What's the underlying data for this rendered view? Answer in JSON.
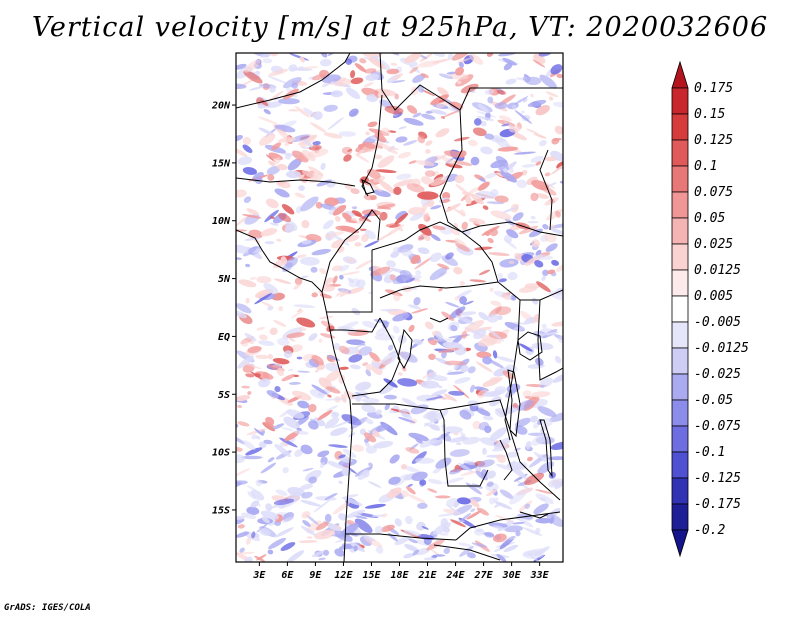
{
  "title": "Vertical velocity [m/s] at 925hPa, VT: 2020032606",
  "credit": "GrADS: IGES/COLA",
  "axes": {
    "lat_ticks": [
      "20N",
      "15N",
      "10N",
      "5N",
      "EQ",
      "5S",
      "10S",
      "15S"
    ],
    "lat_values": [
      20,
      15,
      10,
      5,
      0,
      -5,
      -10,
      -15
    ],
    "lon_ticks": [
      "3E",
      "6E",
      "9E",
      "12E",
      "15E",
      "18E",
      "21E",
      "24E",
      "27E",
      "30E",
      "33E"
    ],
    "lon_values": [
      3,
      6,
      9,
      12,
      15,
      18,
      21,
      24,
      27,
      30,
      33
    ],
    "lat_range": [
      -19.5,
      24.5
    ],
    "lon_range": [
      0.5,
      35.5
    ]
  },
  "colorbar": {
    "labels": [
      "0.175",
      "0.15",
      "0.125",
      "0.1",
      "0.075",
      "0.05",
      "0.025",
      "0.0125",
      "0.005",
      "-0.005",
      "-0.0125",
      "-0.025",
      "-0.05",
      "-0.075",
      "-0.1",
      "-0.125",
      "-0.175",
      "-0.2"
    ],
    "colors": [
      "#b4141e",
      "#c8282d",
      "#d73c3c",
      "#e15a5a",
      "#e87878",
      "#f09696",
      "#f5b4b4",
      "#fad2d2",
      "#fdeaea",
      "#ffffff",
      "#e6e6fa",
      "#cdcdf5",
      "#aaaaf0",
      "#8c8ceb",
      "#6e6ee1",
      "#5050d2",
      "#3232b4",
      "#1e1e96",
      "#14148c"
    ]
  },
  "field_colors": {
    "red_strong": "#e05a5a",
    "red_mid": "#f29a9a",
    "red_light": "#fbd6d6",
    "blue_strong": "#6e6ee6",
    "blue_mid": "#a9a9f2",
    "blue_light": "#dcdcfa"
  }
}
